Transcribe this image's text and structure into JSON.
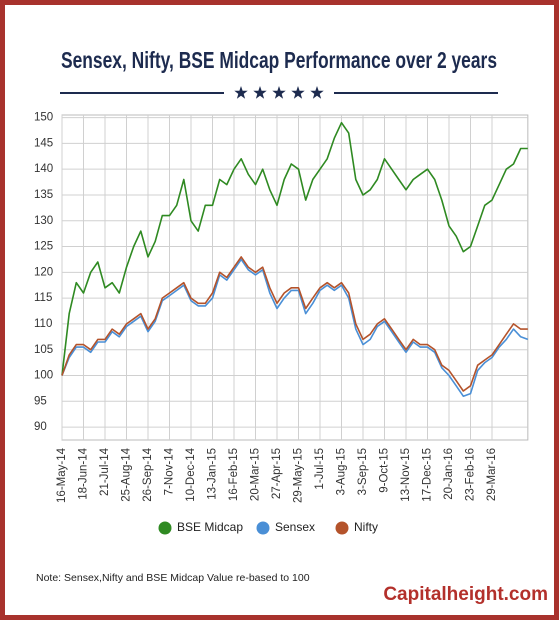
{
  "chart_data": {
    "type": "line",
    "title": "Sensex, Nifty, BSE Midcap Performance over 2 years",
    "note": "Note: Sensex,Nifty and BSE Midcap Value re-based to 100",
    "watermark": "Capitalheight.com",
    "categories": [
      "16-May-14",
      null,
      null,
      "18-Jun-14",
      null,
      null,
      "21-Jul-14",
      null,
      null,
      "25-Aug-14",
      null,
      null,
      "26-Sep-14",
      null,
      null,
      "7-Nov-14",
      null,
      null,
      "10-Dec-14",
      null,
      null,
      "13-Jan-15",
      null,
      null,
      "16-Feb-15",
      null,
      null,
      "20-Mar-15",
      null,
      null,
      "27-Apr-15",
      null,
      null,
      "29-May-15",
      null,
      null,
      "1-Jul-15",
      null,
      null,
      "3-Aug-15",
      null,
      null,
      "3-Sep-15",
      null,
      null,
      "9-Oct-15",
      null,
      null,
      "13-Nov-15",
      null,
      null,
      "17-Dec-15",
      null,
      null,
      "20-Jan-16",
      null,
      null,
      "23-Feb-16",
      null,
      null,
      "29-Mar-16",
      null,
      null,
      null,
      null,
      null
    ],
    "series": [
      {
        "name": "BSE Midcap",
        "color": "#2f8a22",
        "values": [
          100,
          112,
          118,
          116,
          120,
          122,
          117,
          118,
          116,
          121,
          125,
          128,
          123,
          126,
          131,
          131,
          133,
          138,
          130,
          128,
          133,
          133,
          138,
          137,
          140,
          142,
          139,
          137,
          140,
          136,
          133,
          138,
          141,
          140,
          134,
          138,
          140,
          142,
          146,
          149,
          147,
          138,
          135,
          136,
          138,
          142,
          140,
          138,
          136,
          138,
          139,
          140,
          138,
          134,
          129,
          127,
          124,
          125,
          129,
          133,
          134,
          137,
          140,
          141,
          144,
          144
        ]
      },
      {
        "name": "Sensex",
        "color": "#4a8fd6",
        "values": [
          100,
          103.5,
          105.5,
          105.5,
          104.5,
          106.5,
          106.5,
          108.5,
          107.5,
          109.5,
          110.5,
          111.5,
          108.5,
          110.5,
          114.5,
          115.5,
          116.5,
          117.5,
          114.5,
          113.5,
          113.5,
          115,
          119.5,
          118.5,
          120.5,
          122.5,
          120.5,
          119.5,
          120.5,
          116,
          113,
          115,
          116.5,
          116.5,
          112,
          114,
          116.5,
          117.5,
          116.5,
          117.5,
          115,
          109,
          106,
          107,
          109.5,
          110.5,
          108.5,
          106.5,
          104.5,
          106.5,
          105.5,
          105.5,
          104.5,
          101.5,
          100,
          98,
          96,
          96.5,
          101,
          102.5,
          103.5,
          105.5,
          107,
          109,
          107.5,
          107
        ]
      },
      {
        "name": "Nifty",
        "color": "#b4532b",
        "values": [
          100,
          104,
          106,
          106,
          105,
          107,
          107,
          109,
          108,
          110,
          111,
          112,
          109,
          111,
          115,
          116,
          117,
          118,
          115,
          114,
          114,
          116,
          120,
          119,
          121,
          123,
          121,
          120,
          121,
          117,
          114,
          116,
          117,
          117,
          113,
          115,
          117,
          118,
          117,
          118,
          116,
          110,
          107,
          108,
          110,
          111,
          109,
          107,
          105,
          107,
          106,
          106,
          105,
          102,
          101,
          99,
          97,
          98,
          102,
          103,
          104,
          106,
          108,
          110,
          109,
          109
        ]
      }
    ],
    "ylim": [
      87.5,
      150.5
    ],
    "yticks": [
      90,
      95,
      100,
      105,
      110,
      115,
      120,
      125,
      130,
      135,
      140,
      145,
      150
    ],
    "grid": true
  }
}
